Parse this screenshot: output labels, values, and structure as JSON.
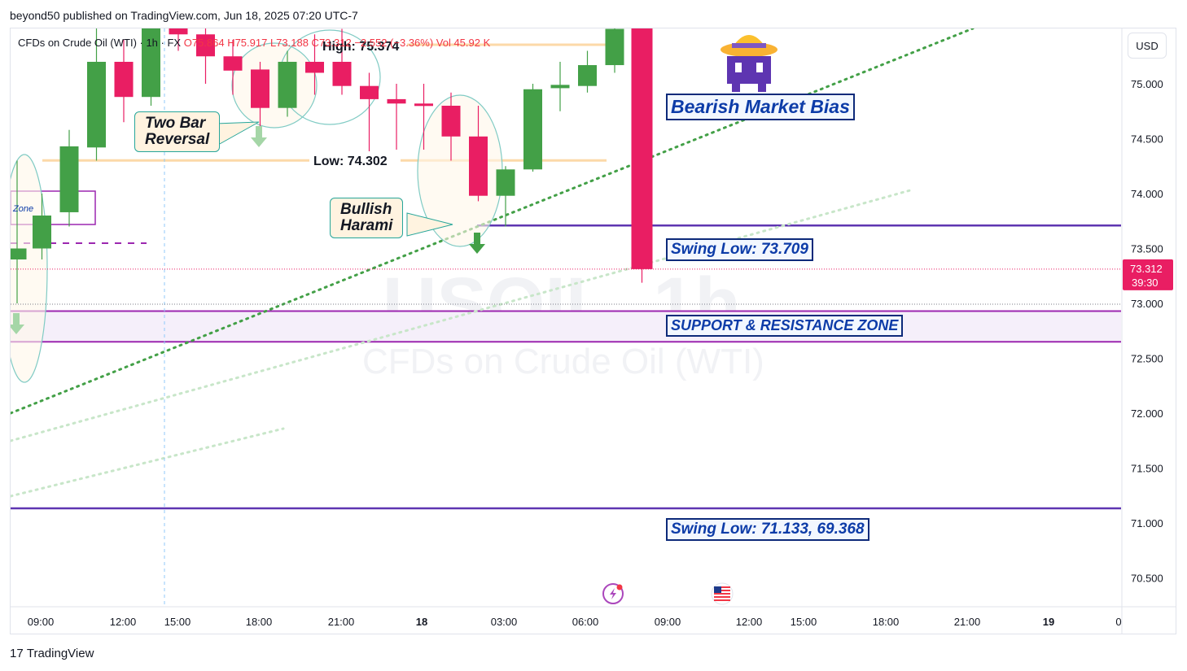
{
  "publisher": "beyond50 published on TradingView.com, Jun 18, 2025 07:20 UTC-7",
  "legend": {
    "symbol": "CFDs on Crude Oil (WTI) · 1h · FX",
    "ohlc": "O75.864 H75.917 L73.188 C73.312 −2.552 (−3.36%) Vol 45.92 K"
  },
  "currency": "USD",
  "watermark": {
    "ticker": "USOIL, 1h",
    "name": "CFDs on Crude Oil (WTI)"
  },
  "footer": {
    "logo_mark": "17",
    "logo_text": "TradingView"
  },
  "annotations": {
    "bias": "Bearish Market Bias",
    "swing_low_1": "Swing Low: 73.709",
    "sr_zone": "SUPPORT & RESISTANCE ZONE",
    "swing_low_2": "Swing Low: 71.133, 69.368",
    "two_bar_line1": "Two Bar",
    "two_bar_line2": "Reversal",
    "harami_line1": "Bullish",
    "harami_line2": "Harami",
    "high_label": "High: 75.374",
    "low_label": "Low: 74.302",
    "zone_label": "Zone"
  },
  "price_label": {
    "price": "73.312",
    "countdown": "39:30"
  },
  "colors": {
    "up": "#43a047",
    "down": "#e91e63",
    "purple": "#7e57c2",
    "green_dot": "#43a047"
  },
  "chart_data": {
    "type": "candlestick",
    "title": "",
    "yaxis_ticks": [
      "70.500",
      "71.000",
      "71.500",
      "72.000",
      "72.500",
      "73.000",
      "73.500",
      "74.000",
      "74.500",
      "75.000"
    ],
    "ylim": [
      70.2,
      75.7
    ],
    "xaxis_ticks": [
      "09:00",
      "12:00",
      "15:00",
      "18:00",
      "21:00",
      "18",
      "03:00",
      "06:00",
      "09:00",
      "12:00",
      "15:00",
      "18:00",
      "21:00",
      "19",
      "0"
    ],
    "candles": [
      {
        "t": "Jun 17 08:00",
        "o": 73.4,
        "h": 74.3,
        "l": 73.0,
        "c": 73.5
      },
      {
        "t": "Jun 17 09:00",
        "o": 73.5,
        "h": 74.0,
        "l": 73.4,
        "c": 73.8
      },
      {
        "t": "Jun 17 10:00",
        "o": 73.83,
        "h": 74.58,
        "l": 73.7,
        "c": 74.43
      },
      {
        "t": "Jun 17 11:00",
        "o": 74.42,
        "h": 75.6,
        "l": 74.3,
        "c": 75.2
      },
      {
        "t": "Jun 17 12:00",
        "o": 75.2,
        "h": 75.4,
        "l": 74.65,
        "c": 74.88
      },
      {
        "t": "Jun 17 13:00",
        "o": 74.88,
        "h": 75.7,
        "l": 74.8,
        "c": 75.55
      },
      {
        "t": "Jun 17 14:00",
        "o": 75.55,
        "h": 75.8,
        "l": 75.3,
        "c": 75.45
      },
      {
        "t": "Jun 17 15:00",
        "o": 75.45,
        "h": 75.6,
        "l": 75.0,
        "c": 75.25
      },
      {
        "t": "Jun 17 16:00",
        "o": 75.25,
        "h": 75.4,
        "l": 74.9,
        "c": 75.12
      },
      {
        "t": "Jun 17 17:00",
        "o": 75.13,
        "h": 75.2,
        "l": 74.6,
        "c": 74.78
      },
      {
        "t": "Jun 17 18:00",
        "o": 74.78,
        "h": 75.3,
        "l": 74.7,
        "c": 75.2
      },
      {
        "t": "Jun 17 19:00",
        "o": 75.2,
        "h": 75.45,
        "l": 74.9,
        "c": 75.1
      },
      {
        "t": "Jun 17 20:00",
        "o": 75.2,
        "h": 75.5,
        "l": 74.9,
        "c": 74.98
      },
      {
        "t": "Jun 17 21:00",
        "o": 74.98,
        "h": 75.1,
        "l": 74.35,
        "c": 74.86
      },
      {
        "t": "Jun 17 22:00",
        "o": 74.86,
        "h": 75.0,
        "l": 74.4,
        "c": 74.82
      },
      {
        "t": "Jun 17 23:00",
        "o": 74.82,
        "h": 75.0,
        "l": 74.4,
        "c": 74.8
      },
      {
        "t": "Jun 18 00:00",
        "o": 74.8,
        "h": 74.92,
        "l": 74.3,
        "c": 74.52
      },
      {
        "t": "Jun 18 01:00",
        "o": 74.52,
        "h": 74.8,
        "l": 73.93,
        "c": 73.98
      },
      {
        "t": "Jun 18 02:00",
        "o": 73.98,
        "h": 74.25,
        "l": 73.7,
        "c": 74.22
      },
      {
        "t": "Jun 18 03:00",
        "o": 74.22,
        "h": 75.0,
        "l": 74.2,
        "c": 74.95
      },
      {
        "t": "Jun 18 04:00",
        "o": 74.96,
        "h": 75.2,
        "l": 74.75,
        "c": 74.99
      },
      {
        "t": "Jun 18 05:00",
        "o": 74.98,
        "h": 75.3,
        "l": 74.92,
        "c": 75.17
      },
      {
        "t": "Jun 18 06:00",
        "o": 75.17,
        "h": 75.7,
        "l": 75.1,
        "c": 75.5
      },
      {
        "t": "Jun 18 07:00",
        "o": 75.864,
        "h": 75.917,
        "l": 73.188,
        "c": 73.312
      }
    ],
    "levels": [
      {
        "name": "Swing Low: 73.709",
        "value": 73.709
      },
      {
        "name": "Support & Resistance zone top",
        "value": 72.93
      },
      {
        "name": "Support & Resistance zone bottom",
        "value": 72.65
      },
      {
        "name": "Swing Low: 71.133",
        "value": 71.133
      }
    ],
    "current_price": 73.312,
    "grid": false
  }
}
